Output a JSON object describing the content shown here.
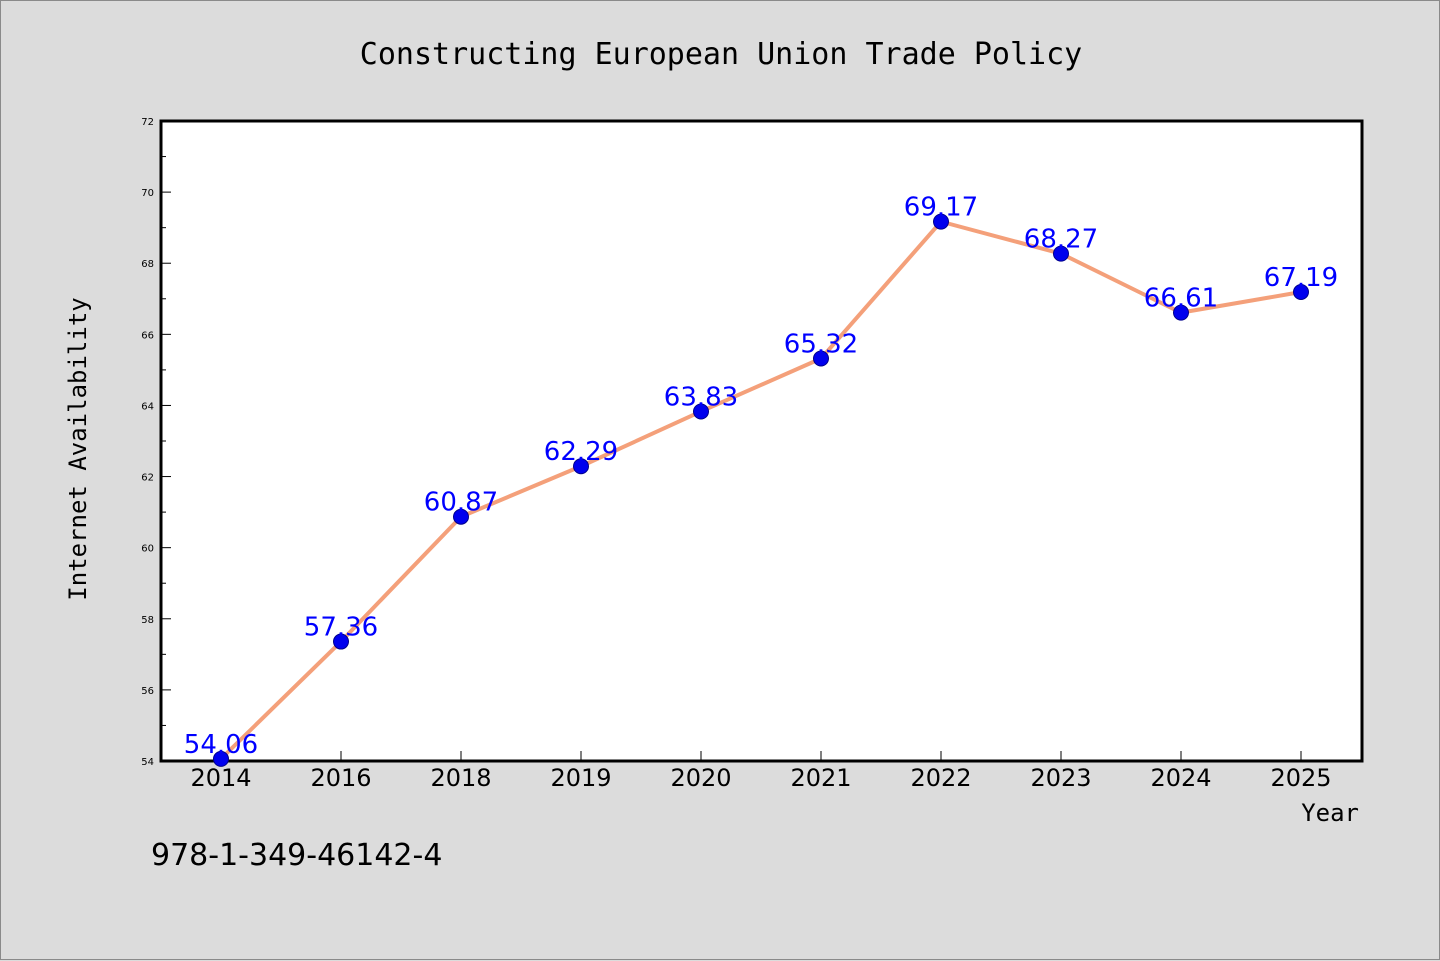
{
  "chart_data": {
    "type": "line",
    "title": "Constructing European Union Trade Policy",
    "xlabel": "Year",
    "ylabel": "Internet Availability",
    "categories": [
      "2014",
      "2016",
      "2018",
      "2019",
      "2020",
      "2021",
      "2022",
      "2023",
      "2024",
      "2025"
    ],
    "series": [
      {
        "values": [
          54.06,
          57.36,
          60.87,
          62.29,
          63.83,
          65.32,
          69.17,
          68.27,
          66.61,
          67.19
        ],
        "labels": [
          "54.06",
          "57.36",
          "60.87",
          "62.29",
          "63.83",
          "65.32",
          "69.17",
          "68.27",
          "66.61",
          "67.19"
        ],
        "line_color": "#f4a07a",
        "marker_color": "#0000ee"
      }
    ],
    "ylim": [
      54,
      72
    ],
    "yticks": [
      54,
      56,
      58,
      60,
      62,
      64,
      66,
      68,
      70,
      72
    ],
    "ytick_labels": [
      "54",
      "56",
      "58",
      "60",
      "62",
      "64",
      "66",
      "68",
      "70",
      "72"
    ],
    "grid": false,
    "legend": "none"
  },
  "footer": {
    "isbn": "978-1-349-46142-4"
  },
  "colors": {
    "background": "#dcdcdc",
    "plot_background": "#ffffff",
    "label_color": "#0000ff"
  }
}
